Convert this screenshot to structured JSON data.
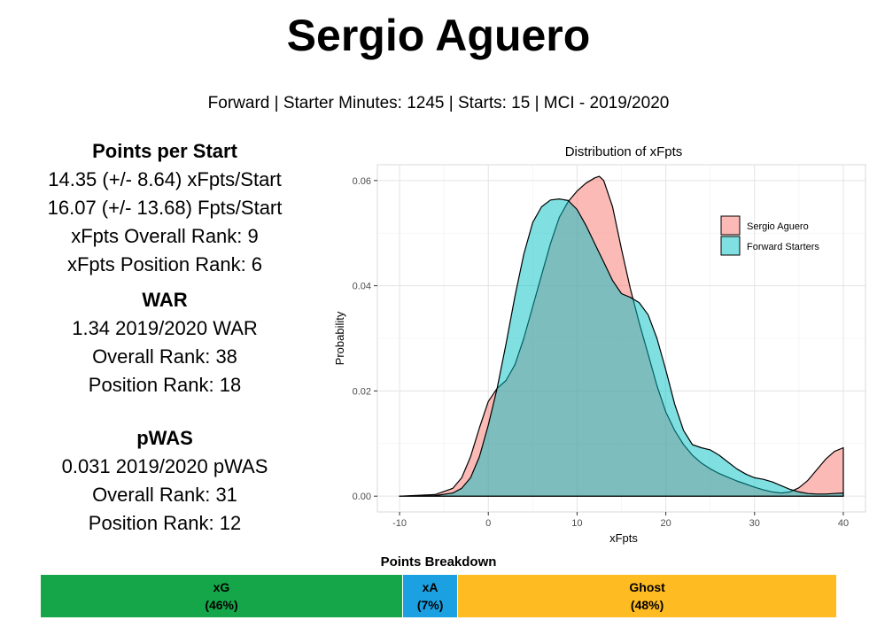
{
  "header": {
    "title": "Sergio Aguero",
    "subtitle": "Forward | Starter Minutes: 1245 | Starts: 15 | MCI - 2019/2020"
  },
  "points_per_start": {
    "heading": "Points per Start",
    "lines": [
      "14.35 (+/- 8.64) xFpts/Start",
      "16.07 (+/- 13.68) Fpts/Start",
      "xFpts Overall Rank: 9",
      "xFpts Position Rank: 6"
    ]
  },
  "war": {
    "heading": "WAR",
    "lines": [
      "1.34 2019/2020 WAR",
      "Overall Rank: 38",
      "Position Rank: 18"
    ]
  },
  "pwas": {
    "heading": "pWAS",
    "lines": [
      "0.031 2019/2020 pWAS",
      "Overall Rank: 31",
      "Position Rank: 12"
    ]
  },
  "chart_data": {
    "type": "area",
    "title": "Distribution of xFpts",
    "xlabel": "xFpts",
    "ylabel": "Probability",
    "xlim": [
      -10,
      40
    ],
    "ylim": [
      0,
      0.063
    ],
    "x_ticks": [
      -10,
      0,
      10,
      20,
      30,
      40
    ],
    "x_tick_labels": [
      "-10",
      "0",
      "10",
      "20",
      "30",
      "40"
    ],
    "y_ticks": [
      0,
      0.02,
      0.04,
      0.06
    ],
    "y_tick_labels": [
      "0.00",
      "0.02",
      "0.04",
      "0.06"
    ],
    "grid": true,
    "legend_position": "top-right",
    "series": [
      {
        "name": "Sergio Aguero",
        "color": "#F8766D",
        "x": [
          -10,
          -6,
          -4,
          -3,
          -2,
          -1,
          0,
          1,
          2,
          3,
          4,
          5,
          6,
          7,
          8,
          9,
          10,
          11,
          12,
          12.5,
          13,
          14,
          15,
          16,
          17,
          18,
          19,
          20,
          21,
          22,
          23,
          24,
          25,
          26,
          27,
          28,
          29,
          30,
          31,
          32,
          33,
          34,
          35,
          36,
          37,
          38,
          39,
          40
        ],
        "y": [
          0,
          0.0003,
          0.0015,
          0.0035,
          0.0075,
          0.013,
          0.018,
          0.0205,
          0.022,
          0.025,
          0.03,
          0.036,
          0.042,
          0.048,
          0.053,
          0.056,
          0.058,
          0.0595,
          0.0605,
          0.0608,
          0.06,
          0.055,
          0.047,
          0.0395,
          0.033,
          0.027,
          0.021,
          0.016,
          0.0125,
          0.0098,
          0.0078,
          0.0063,
          0.0052,
          0.0043,
          0.0036,
          0.0029,
          0.0023,
          0.0017,
          0.0012,
          0.0008,
          0.0006,
          0.0008,
          0.0016,
          0.003,
          0.005,
          0.007,
          0.0085,
          0.0092
        ]
      },
      {
        "name": "Forward Starters",
        "color": "#00BFC4",
        "x": [
          -10,
          -6,
          -4,
          -3,
          -2,
          -1,
          0,
          1,
          2,
          3,
          4,
          5,
          6,
          7,
          8,
          9,
          10,
          11,
          12,
          13,
          14,
          15,
          16,
          17,
          18,
          19,
          20,
          21,
          22,
          23,
          24,
          25,
          26,
          27,
          28,
          29,
          30,
          31,
          32,
          33,
          34,
          35,
          36,
          37,
          38,
          39,
          40
        ],
        "y": [
          0,
          0.0001,
          0.0006,
          0.0015,
          0.0035,
          0.0075,
          0.0135,
          0.0205,
          0.029,
          0.038,
          0.046,
          0.052,
          0.055,
          0.0563,
          0.0565,
          0.0562,
          0.0545,
          0.0515,
          0.048,
          0.0445,
          0.041,
          0.0385,
          0.0378,
          0.0368,
          0.0345,
          0.03,
          0.024,
          0.0175,
          0.0125,
          0.0098,
          0.0092,
          0.0088,
          0.0078,
          0.0065,
          0.0052,
          0.0042,
          0.0035,
          0.0032,
          0.0027,
          0.002,
          0.0013,
          0.0008,
          0.0005,
          0.0004,
          0.0004,
          0.0005,
          0.0006
        ]
      }
    ]
  },
  "breakdown": {
    "title": "Points Breakdown",
    "segments": [
      {
        "label": "xG",
        "pct_label": "(46%)",
        "pct": 46,
        "color": "#16A64A"
      },
      {
        "label": "xA",
        "pct_label": "(7%)",
        "pct": 7,
        "color": "#1BA1E2"
      },
      {
        "label": "Ghost",
        "pct_label": "(48%)",
        "pct": 48,
        "color": "#FFBB22"
      }
    ]
  }
}
